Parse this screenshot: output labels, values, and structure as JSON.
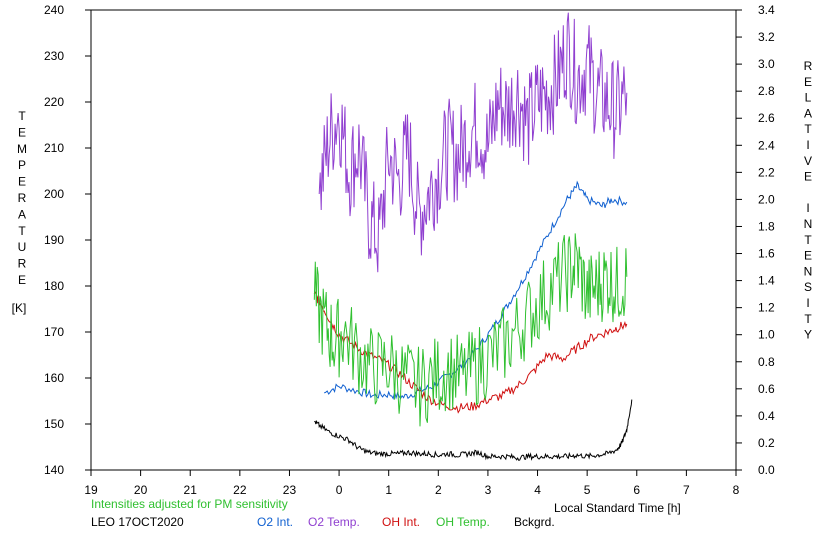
{
  "chart_data": {
    "type": "line",
    "xlabel": "Local Standard Time [h]",
    "ylabel_left": "TEMPERATURE [K]",
    "ylabel_right": "RELATIVE INTENSITY",
    "ylabel_left_letters": [
      "T",
      "E",
      "M",
      "P",
      "E",
      "R",
      "A",
      "T",
      "U",
      "R",
      "E"
    ],
    "ylabel_left_unit": "[K]",
    "ylabel_right_letters": [
      "R",
      "E",
      "L",
      "A",
      "T",
      "I",
      "V",
      "E",
      "",
      "I",
      "N",
      "T",
      "E",
      "N",
      "S",
      "I",
      "T",
      "Y"
    ],
    "x_ticks": [
      "19",
      "20",
      "21",
      "22",
      "23",
      "0",
      "1",
      "2",
      "3",
      "4",
      "5",
      "6",
      "7",
      "8"
    ],
    "x_range": [
      19,
      32
    ],
    "y_left_ticks": [
      "140",
      "150",
      "160",
      "170",
      "180",
      "190",
      "200",
      "210",
      "220",
      "230",
      "240"
    ],
    "y_left_range": [
      140,
      240
    ],
    "y_right_ticks": [
      "0.0",
      "0.2",
      "0.4",
      "0.6",
      "0.8",
      "1.0",
      "1.2",
      "1.4",
      "1.6",
      "1.8",
      "2.0",
      "2.2",
      "2.4",
      "2.6",
      "2.8",
      "3.0",
      "3.2",
      "3.4"
    ],
    "y_right_range": [
      0.0,
      3.4
    ],
    "grid": false,
    "note": "Intensities adjusted for PM sensitivity",
    "station_label": "LEO 17OCT2020",
    "series": [
      {
        "name": "O2 Int.",
        "color": "#1060d0",
        "axis": "right",
        "x": [
          23.7,
          24.0,
          24.4,
          24.7,
          25.0,
          25.3,
          25.6,
          25.9,
          26.2,
          26.5,
          26.8,
          27.1,
          27.4,
          27.7,
          28.0,
          28.3,
          28.6,
          28.8,
          29.0,
          29.3,
          29.5,
          29.8
        ],
        "y": [
          0.57,
          0.62,
          0.58,
          0.55,
          0.56,
          0.54,
          0.58,
          0.62,
          0.7,
          0.78,
          0.9,
          1.05,
          1.22,
          1.4,
          1.6,
          1.8,
          2.0,
          2.1,
          2.0,
          1.95,
          2.0,
          1.98
        ]
      },
      {
        "name": "O2 Temp.",
        "color": "#9040d0",
        "axis": "left",
        "x": [
          23.6,
          23.8,
          24.0,
          24.2,
          24.4,
          24.6,
          24.8,
          25.0,
          25.2,
          25.4,
          25.6,
          25.8,
          26.0,
          26.2,
          26.4,
          26.6,
          26.8,
          27.0,
          27.2,
          27.4,
          27.6,
          27.8,
          28.0,
          28.2,
          28.4,
          28.6,
          28.8,
          29.0,
          29.2,
          29.4,
          29.6,
          29.8
        ],
        "y": [
          200,
          212,
          218,
          205,
          210,
          195,
          190,
          208,
          203,
          210,
          195,
          200,
          205,
          210,
          208,
          213,
          215,
          210,
          220,
          218,
          222,
          215,
          220,
          222,
          225,
          232,
          225,
          228,
          222,
          220,
          218,
          222
        ]
      },
      {
        "name": "OH Int.",
        "color": "#d01010",
        "axis": "right",
        "x": [
          23.5,
          23.6,
          23.8,
          24.0,
          24.3,
          24.6,
          24.9,
          25.2,
          25.5,
          25.8,
          26.1,
          26.4,
          26.7,
          27.0,
          27.3,
          27.6,
          27.9,
          28.2,
          28.5,
          28.8,
          29.1,
          29.4,
          29.6,
          29.8
        ],
        "y": [
          1.3,
          1.25,
          1.12,
          1.0,
          0.92,
          0.85,
          0.8,
          0.72,
          0.62,
          0.53,
          0.48,
          0.46,
          0.47,
          0.52,
          0.55,
          0.62,
          0.72,
          0.85,
          0.82,
          0.9,
          0.98,
          1.02,
          1.05,
          1.08
        ]
      },
      {
        "name": "OH Temp.",
        "color": "#30c030",
        "axis": "left",
        "x": [
          23.5,
          23.7,
          23.9,
          24.1,
          24.4,
          24.7,
          25.0,
          25.3,
          25.6,
          25.9,
          26.2,
          26.5,
          26.8,
          27.1,
          27.4,
          27.7,
          28.0,
          28.3,
          28.6,
          28.8,
          29.0,
          29.2,
          29.4,
          29.6,
          29.8
        ],
        "y": [
          177,
          172,
          168,
          170,
          165,
          162,
          163,
          160,
          158,
          160,
          162,
          160,
          163,
          165,
          168,
          172,
          176,
          180,
          183,
          185,
          178,
          180,
          182,
          180,
          182
        ]
      },
      {
        "name": "Bckgrd.",
        "color": "#000000",
        "axis": "right",
        "x": [
          23.5,
          23.6,
          23.8,
          24.0,
          24.2,
          24.4,
          24.6,
          24.8,
          25.0,
          25.2,
          25.4,
          25.6,
          25.8,
          26.0,
          26.2,
          26.4,
          26.6,
          26.8,
          27.0,
          27.2,
          27.4,
          27.6,
          27.8,
          28.0,
          28.2,
          28.4,
          28.6,
          28.8,
          29.0,
          29.2,
          29.4,
          29.6,
          29.7,
          29.8,
          29.9
        ],
        "y": [
          0.36,
          0.33,
          0.28,
          0.25,
          0.22,
          0.16,
          0.13,
          0.12,
          0.12,
          0.12,
          0.13,
          0.12,
          0.12,
          0.11,
          0.12,
          0.11,
          0.12,
          0.13,
          0.1,
          0.1,
          0.1,
          0.09,
          0.1,
          0.1,
          0.1,
          0.1,
          0.1,
          0.11,
          0.1,
          0.11,
          0.12,
          0.15,
          0.2,
          0.3,
          0.52
        ]
      }
    ]
  }
}
